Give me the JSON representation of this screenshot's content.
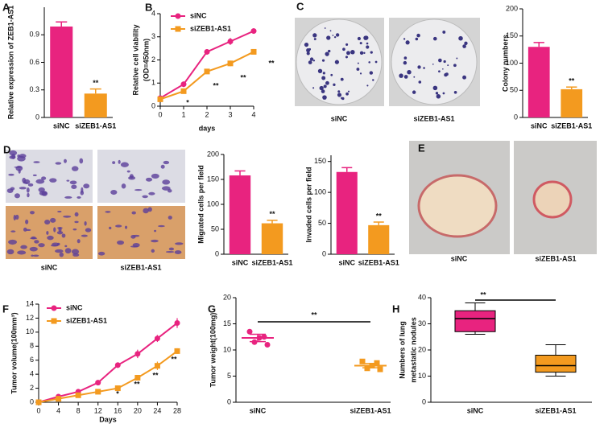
{
  "chart_data": [
    {
      "type": "bar",
      "label": "A",
      "ylabel": "Relative expression of ZEB1-AS1",
      "categories": [
        "siNC",
        "siZEB1-AS1"
      ],
      "values": [
        0.99,
        0.26
      ],
      "errors": [
        0.05,
        0.05
      ],
      "colors": [
        "#e8237f",
        "#f39a1f"
      ],
      "ylim": [
        0,
        1.2
      ],
      "yticks": [
        0,
        0.3,
        0.6,
        0.9
      ],
      "annotations": [
        "**"
      ]
    },
    {
      "type": "line",
      "label": "B",
      "ylabel": [
        "Relative cell viability",
        "(OD=450nm)"
      ],
      "xlabel": "days",
      "x": [
        0,
        1,
        2,
        3,
        4
      ],
      "xlim": [
        0,
        4
      ],
      "xticks": [
        0,
        1,
        2,
        3,
        4
      ],
      "ylim": [
        0,
        4
      ],
      "yticks": [
        0,
        1,
        2,
        3,
        4
      ],
      "series": [
        {
          "name": "siNC",
          "color": "#e8237f",
          "marker": "circle",
          "values": [
            0.35,
            0.95,
            2.35,
            2.8,
            3.25
          ],
          "errors": [
            0.08,
            0.12,
            0.12,
            0.15,
            0.12
          ]
        },
        {
          "name": "siZEB1-AS1",
          "color": "#f39a1f",
          "marker": "square",
          "values": [
            0.3,
            0.65,
            1.5,
            1.85,
            2.35
          ],
          "errors": [
            0.06,
            0.1,
            0.1,
            0.12,
            0.08
          ]
        }
      ],
      "annotations": [
        "*",
        "**",
        "**",
        "**"
      ]
    },
    {
      "type": "bar",
      "ylabel": "Colony numbers",
      "categories": [
        "siNC",
        "siZEB1-AS1"
      ],
      "values": [
        130,
        52
      ],
      "errors": [
        8,
        4
      ],
      "colors": [
        "#e8237f",
        "#f39a1f"
      ],
      "ylim": [
        0,
        200
      ],
      "yticks": [
        0,
        50,
        100,
        150,
        200
      ],
      "annotations": [
        "**"
      ]
    },
    {
      "type": "bar",
      "ylabel": "Migrated cells per field",
      "categories": [
        "siNC",
        "siZEB1-AS1"
      ],
      "values": [
        158,
        62
      ],
      "errors": [
        9,
        6
      ],
      "colors": [
        "#e8237f",
        "#f39a1f"
      ],
      "ylim": [
        0,
        200
      ],
      "yticks": [
        0,
        50,
        100,
        150,
        200
      ],
      "annotations": [
        "**"
      ]
    },
    {
      "type": "bar",
      "ylabel": "Invaded cells per field",
      "categories": [
        "siNC",
        "siZEB1-AS1"
      ],
      "values": [
        133,
        47
      ],
      "errors": [
        7,
        5
      ],
      "colors": [
        "#e8237f",
        "#f39a1f"
      ],
      "ylim": [
        0,
        160
      ],
      "yticks": [
        0,
        50,
        100,
        150
      ],
      "annotations": [
        "**"
      ]
    },
    {
      "type": "line",
      "label": "F",
      "ylabel": "Tumor volume(100mm³)",
      "xlabel": "Days",
      "x": [
        0,
        4,
        8,
        12,
        16,
        20,
        24,
        28
      ],
      "xlim": [
        0,
        28
      ],
      "xticks": [
        0,
        4,
        8,
        12,
        16,
        20,
        24,
        28
      ],
      "ylim": [
        0,
        14
      ],
      "yticks": [
        0,
        2,
        4,
        6,
        8,
        10,
        12,
        14
      ],
      "series": [
        {
          "name": "siNC",
          "color": "#e8237f",
          "marker": "circle",
          "values": [
            0,
            0.8,
            1.5,
            2.8,
            5.3,
            6.9,
            9.1,
            11.3
          ],
          "errors": [
            0.05,
            0.2,
            0.3,
            0.3,
            0.4,
            0.6,
            0.5,
            0.7
          ]
        },
        {
          "name": "siZEB1-AS1",
          "color": "#f39a1f",
          "marker": "square",
          "values": [
            0,
            0.5,
            1.0,
            1.5,
            2.0,
            3.5,
            5.2,
            7.3
          ],
          "errors": [
            0.05,
            0.15,
            0.2,
            0.2,
            0.3,
            0.4,
            0.6,
            0.4
          ]
        }
      ],
      "annotations": [
        "*",
        "**",
        "**",
        "**"
      ]
    },
    {
      "type": "scatter",
      "label": "G",
      "ylabel": "Tumor weight(100mg)",
      "categories": [
        "siNC",
        "siZEB1-AS1"
      ],
      "colors": [
        "#e8237f",
        "#f39a1f"
      ],
      "points": [
        [
          13.5,
          12.5,
          11.5,
          11.0,
          12.3
        ],
        [
          7.8,
          7.5,
          6.5,
          6.3,
          7.0
        ]
      ],
      "means": [
        12.3,
        7.0
      ],
      "errors": [
        0.7,
        0.4
      ],
      "ylim": [
        0,
        20
      ],
      "yticks": [
        0,
        5,
        10,
        15,
        20
      ],
      "annotations": [
        "**"
      ]
    },
    {
      "type": "box",
      "label": "H",
      "ylabel": [
        "Numbers of lung",
        "metastatic nodules"
      ],
      "categories": [
        "siNC",
        "siZEB1-AS1"
      ],
      "colors": [
        "#e8237f",
        "#f39a1f"
      ],
      "min": [
        26,
        10
      ],
      "q1": [
        27,
        11.5
      ],
      "median": [
        32,
        14
      ],
      "q3": [
        35,
        18
      ],
      "max": [
        38,
        22
      ],
      "ylim": [
        0,
        40
      ],
      "yticks": [
        0,
        10,
        20,
        30,
        40
      ],
      "annotations": [
        "**"
      ]
    }
  ],
  "images": [
    {
      "label": "C",
      "captions": [
        "siNC",
        "siZEB1-AS1"
      ]
    },
    {
      "label": "D",
      "captions": [
        "siNC",
        "siZEB1-AS1"
      ]
    },
    {
      "label": "E",
      "captions": [
        "siNC",
        "siZEB1-AS1"
      ]
    }
  ]
}
